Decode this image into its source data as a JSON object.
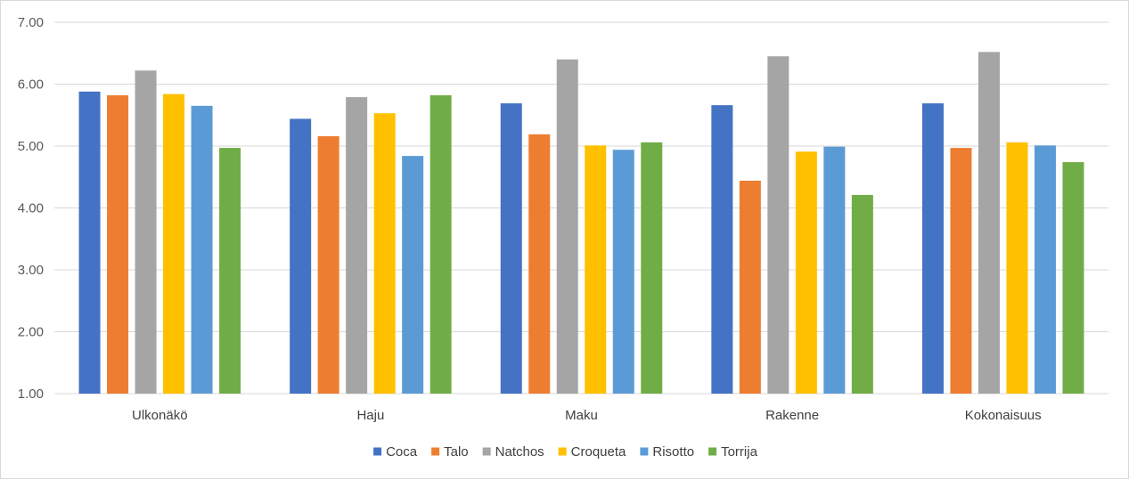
{
  "chart_data": {
    "type": "bar",
    "categories": [
      "Ulkonäkö",
      "Haju",
      "Maku",
      "Rakenne",
      "Kokonaisuus"
    ],
    "series": [
      {
        "name": "Coca",
        "color": "#4472c4",
        "values": [
          5.88,
          5.44,
          5.69,
          5.66,
          5.69
        ]
      },
      {
        "name": "Talo",
        "color": "#ed7d31",
        "values": [
          5.82,
          5.16,
          5.19,
          4.44,
          4.97
        ]
      },
      {
        "name": "Natchos",
        "color": "#a5a5a5",
        "values": [
          6.22,
          5.79,
          6.4,
          6.45,
          6.52
        ]
      },
      {
        "name": "Croqueta",
        "color": "#ffc000",
        "values": [
          5.84,
          5.53,
          5.01,
          4.91,
          5.06
        ]
      },
      {
        "name": "Risotto",
        "color": "#5b9bd5",
        "values": [
          5.65,
          4.84,
          4.94,
          4.99,
          5.01
        ]
      },
      {
        "name": "Torrija",
        "color": "#70ad47",
        "values": [
          4.97,
          5.82,
          5.06,
          4.21,
          4.74
        ]
      }
    ],
    "ylim": [
      1,
      7
    ],
    "yticks": [
      "1.00",
      "2.00",
      "3.00",
      "4.00",
      "5.00",
      "6.00",
      "7.00"
    ],
    "ytick_values": [
      1,
      2,
      3,
      4,
      5,
      6,
      7
    ],
    "grid": true,
    "legend_position": "bottom"
  }
}
